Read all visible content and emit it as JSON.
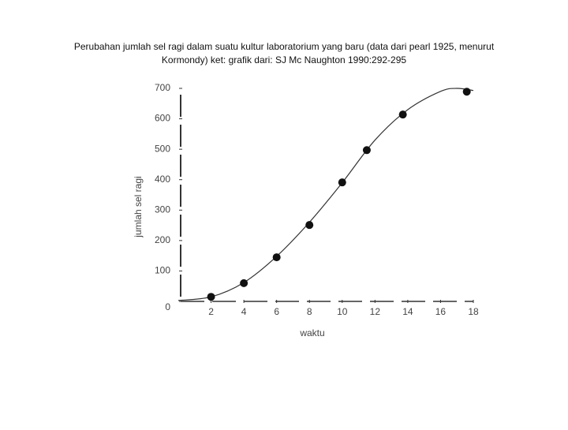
{
  "chart_data": {
    "type": "scatter",
    "title": [
      "Perubahan jumlah sel ragi dalam suatu kultur laboratorium yang baru (data dari pearl 1925, menurut",
      "Kormondy) ket: grafik dari: SJ Mc Naughton 1990:292-295"
    ],
    "x_label": "waktu",
    "y_label": "jumlah sel ragi",
    "x": [
      2,
      4,
      6,
      8,
      10,
      11.5,
      13.7,
      17.6
    ],
    "values": [
      15,
      60,
      145,
      251,
      391,
      497,
      614,
      689
    ],
    "color": "#111111",
    "curve": {
      "x": [
        0,
        2,
        4,
        6,
        8,
        10,
        12,
        14,
        16,
        17,
        18
      ],
      "values": [
        3,
        15,
        62,
        148,
        260,
        390,
        530,
        630,
        690,
        700,
        693
      ]
    },
    "xlim": [
      0,
      18
    ],
    "ylim": [
      0,
      700
    ],
    "xticks": [
      2,
      4,
      6,
      8,
      10,
      12,
      14,
      16,
      18
    ],
    "yticks": [
      0,
      100,
      200,
      300,
      400,
      500,
      600,
      700
    ]
  }
}
